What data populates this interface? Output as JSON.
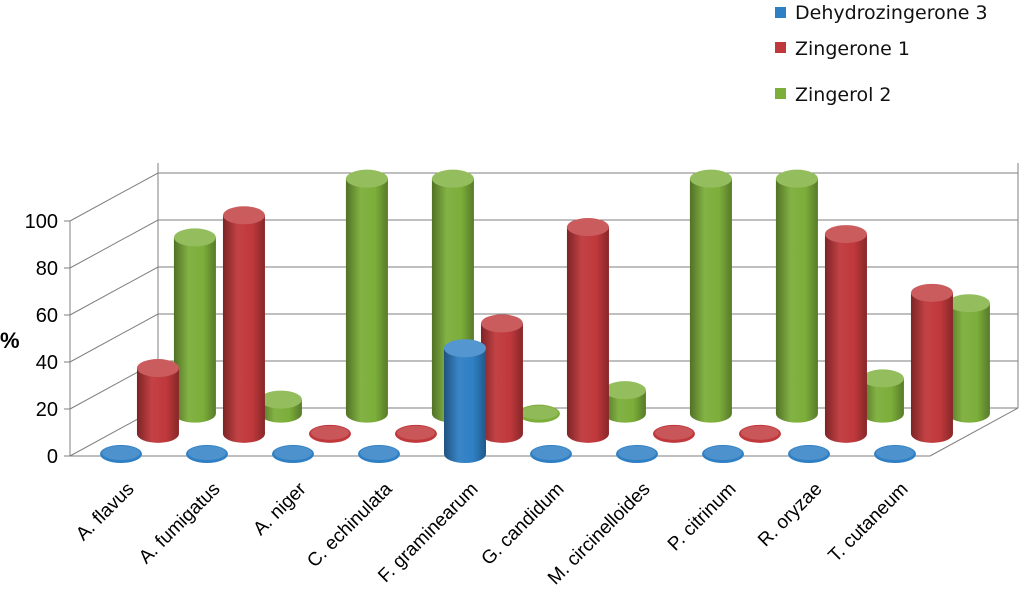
{
  "chart_data": {
    "type": "bar",
    "style": "3d-cylinder",
    "title": "",
    "xlabel": "",
    "ylabel": "%",
    "ylim": [
      0,
      100
    ],
    "yticks": [
      0,
      20,
      40,
      60,
      80,
      100
    ],
    "grid": true,
    "legend": "top-right",
    "categories": [
      "A. flavus",
      "A. fumigatus",
      "A. niger",
      "C. echinulata",
      "F. graminearum",
      "G. candidum",
      "M. circinelloides",
      "P. citrinum",
      "R. oryzae",
      "T. cutaneum"
    ],
    "series": [
      {
        "name": "Dehydrozingerone 3",
        "color": "#2f7fc4",
        "values": [
          0,
          0,
          0,
          0,
          45,
          0,
          0,
          0,
          0,
          0
        ]
      },
      {
        "name": "Zingerone 1",
        "color": "#c0383b",
        "values": [
          28,
          93,
          0,
          0,
          47,
          88,
          0,
          0,
          85,
          60
        ]
      },
      {
        "name": "Zingerol 2",
        "color": "#7cae3a",
        "values": [
          75,
          6,
          100,
          100,
          0,
          10,
          100,
          100,
          15,
          47
        ]
      }
    ]
  }
}
